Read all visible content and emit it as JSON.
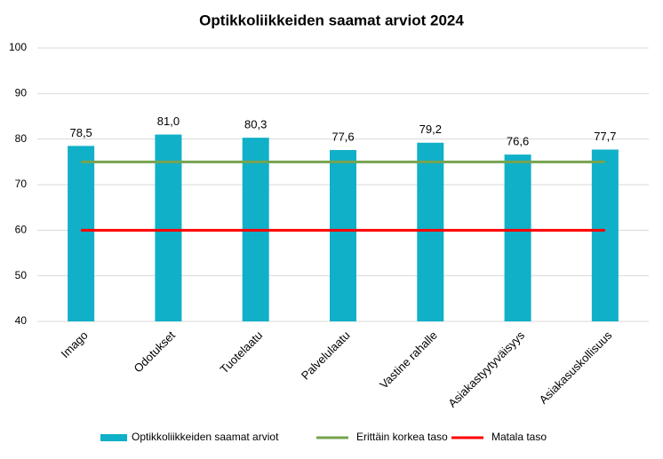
{
  "chart_data": {
    "type": "bar",
    "title": "Optikkoliikkeiden saamat arviot 2024",
    "categories": [
      "Imago",
      "Odotukset",
      "Tuotelaatu",
      "Palvelulaatu",
      "Vastine rahalle",
      "Asiakastyytyväisyys",
      "Asiakasuskollisuus"
    ],
    "series": [
      {
        "name": "Optikkoliikkeiden saamat arviot",
        "type": "bar",
        "color": "#10b0c8",
        "values": [
          78.5,
          81.0,
          80.3,
          77.6,
          79.2,
          76.6,
          77.7
        ],
        "value_labels": [
          "78,5",
          "81,0",
          "80,3",
          "77,6",
          "79,2",
          "76,6",
          "77,7"
        ]
      },
      {
        "name": "Erittäin korkea taso",
        "type": "line",
        "color": "#77a34f",
        "values": [
          75,
          75,
          75,
          75,
          75,
          75,
          75
        ]
      },
      {
        "name": "Matala taso",
        "type": "line",
        "color": "#ff0000",
        "values": [
          60,
          60,
          60,
          60,
          60,
          60,
          60
        ]
      }
    ],
    "ylim": [
      40,
      100
    ],
    "yticks": [
      40,
      50,
      60,
      70,
      80,
      90,
      100
    ],
    "grid": true,
    "legend": "bottom"
  }
}
